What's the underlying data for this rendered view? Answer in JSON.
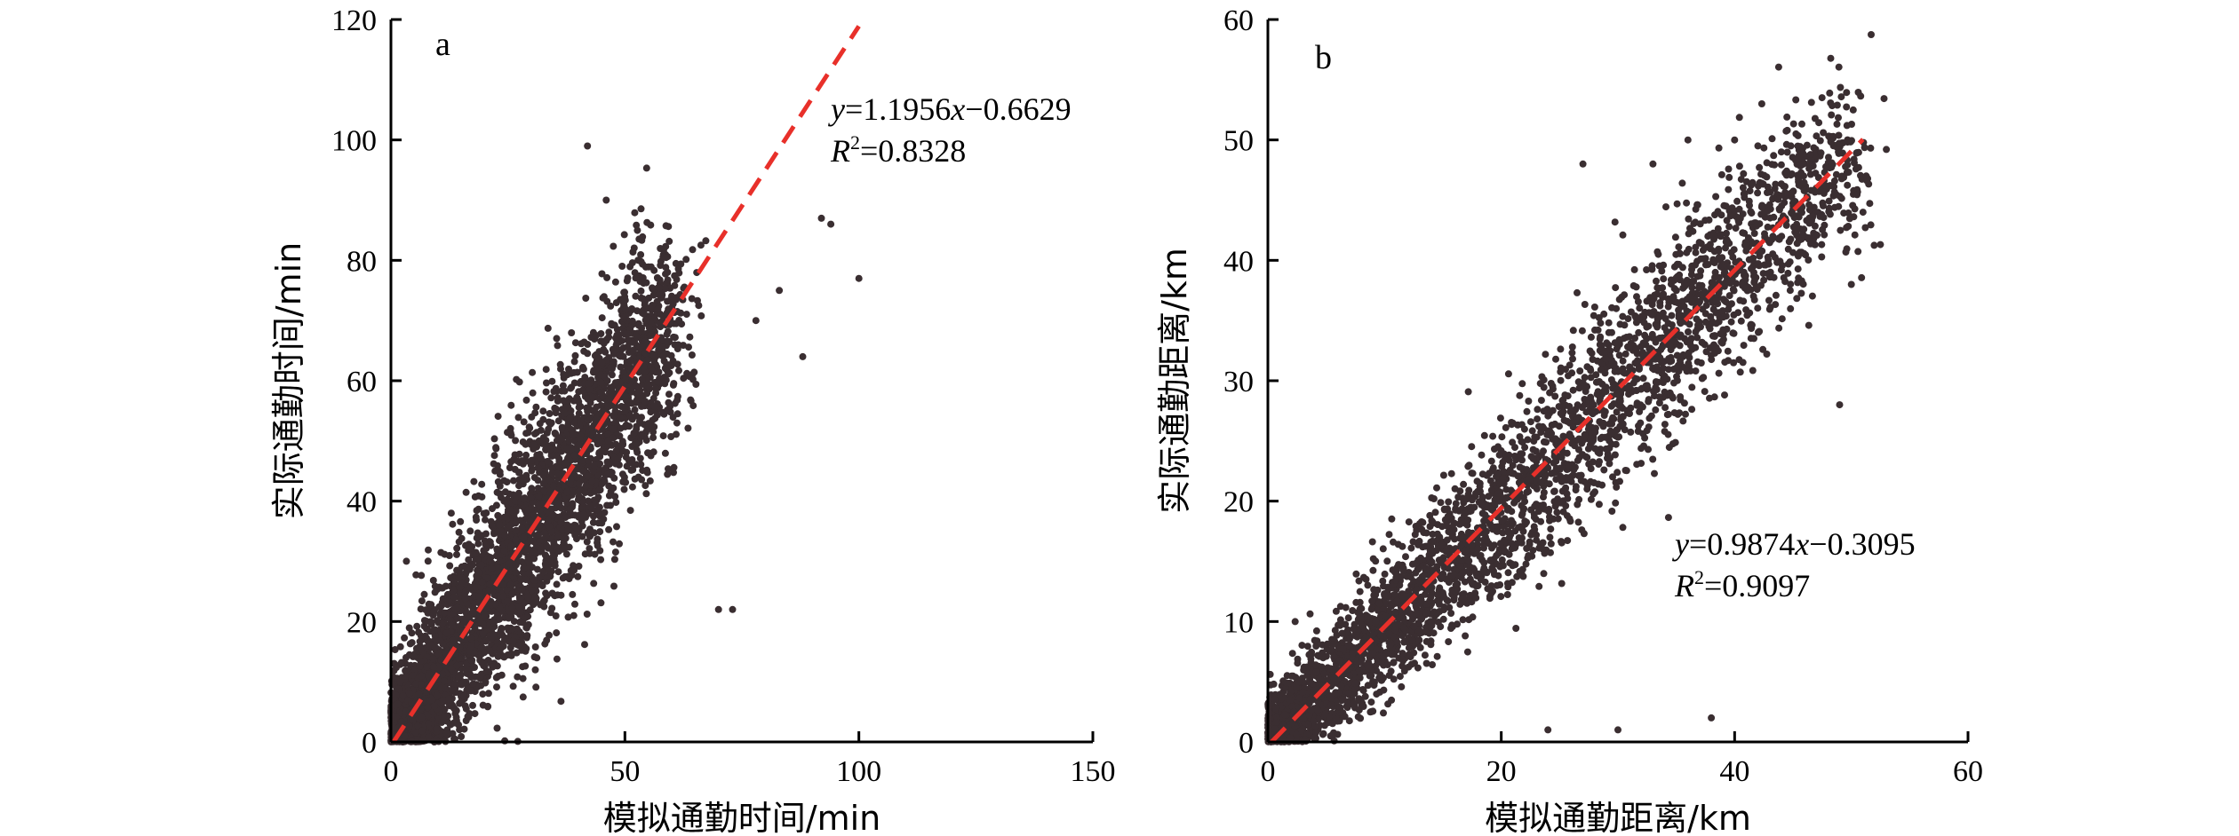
{
  "chart_data": [
    {
      "type": "scatter",
      "panel_label": "a",
      "title": "",
      "xlabel": "模拟通勤时间/min",
      "ylabel": "实际通勤时间/min",
      "xlim": [
        0,
        150
      ],
      "ylim": [
        0,
        120
      ],
      "xticks": [
        0,
        50,
        100,
        150
      ],
      "yticks": [
        0,
        20,
        40,
        60,
        80,
        100,
        120
      ],
      "xtick_labels": [
        "0",
        "50",
        "100",
        "150"
      ],
      "ytick_labels": [
        "0",
        "20",
        "40",
        "60",
        "80",
        "100",
        "120"
      ],
      "regression": {
        "equation_y": "y",
        "equation_rest": "=1.1956",
        "equation_x": "x",
        "equation_tail": "−0.6629",
        "r2_symbol": "R",
        "r2_sup": "2",
        "r2_value": "=0.8328",
        "slope": 1.1956,
        "intercept": -0.6629,
        "x_range": [
          0,
          100
        ],
        "color": "#e8302a"
      },
      "point_color": "#3a2e31",
      "cloud": {
        "x_center_max": 60,
        "spread": 7.5,
        "n": 4200
      },
      "outliers": [
        [
          42,
          99
        ],
        [
          46,
          90
        ],
        [
          70,
          22
        ],
        [
          73,
          22
        ],
        [
          92,
          87
        ],
        [
          94,
          86
        ],
        [
          100,
          77
        ],
        [
          83,
          75
        ],
        [
          88,
          64
        ],
        [
          78,
          70
        ]
      ]
    },
    {
      "type": "scatter",
      "panel_label": "b",
      "title": "",
      "xlabel": "模拟通勤距离/km",
      "ylabel": "实际通勤距离/km",
      "xlim": [
        0,
        60
      ],
      "ylim": [
        0,
        60
      ],
      "xticks": [
        0,
        20,
        40,
        60
      ],
      "yticks": [
        0,
        10,
        20,
        30,
        40,
        50,
        60
      ],
      "xtick_labels": [
        "0",
        "20",
        "40",
        "60"
      ],
      "ytick_labels": [
        "0",
        "10",
        "20",
        "30",
        "40",
        "50",
        "60"
      ],
      "regression": {
        "equation_y": "y",
        "equation_rest": "=0.9874",
        "equation_x": "x",
        "equation_tail": "−0.3095",
        "r2_symbol": "R",
        "r2_sup": "2",
        "r2_value": "=0.9097",
        "slope": 0.9874,
        "intercept": -0.3095,
        "x_range": [
          0,
          51
        ],
        "color": "#e8302a"
      },
      "point_color": "#3a2e31",
      "cloud": {
        "x_center_max": 50,
        "spread": 3.2,
        "n": 3600
      },
      "outliers": [
        [
          36,
          50
        ],
        [
          40,
          50
        ],
        [
          44,
          49
        ],
        [
          47,
          46
        ],
        [
          50,
          38
        ],
        [
          51,
          44
        ],
        [
          33,
          48
        ],
        [
          27,
          48
        ],
        [
          49,
          28
        ],
        [
          24,
          1
        ],
        [
          30,
          1
        ],
        [
          38,
          2
        ]
      ]
    }
  ]
}
